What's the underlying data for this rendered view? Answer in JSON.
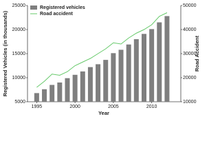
{
  "chart_data": {
    "type": "bar",
    "x_label": "Year",
    "y_label": "Registered Vehicles (in thousands)",
    "y2_label": "Road Accident",
    "x": [
      1995,
      1996,
      1997,
      1998,
      1999,
      2000,
      2001,
      2002,
      2003,
      2004,
      2005,
      2006,
      2007,
      2008,
      2009,
      2010,
      2011,
      2012
    ],
    "xlim": [
      1993.8,
      2013.8
    ],
    "xticks": [
      1995,
      2000,
      2005,
      2010
    ],
    "ylim": [
      5000,
      25000
    ],
    "yticks": [
      5000,
      10000,
      15000,
      20000,
      25000
    ],
    "y2lim": [
      10000,
      50000
    ],
    "y2ticks": [
      10000,
      20000,
      30000,
      40000,
      50000
    ],
    "legend": "top-left",
    "series": [
      {
        "name": "Registered vehicles",
        "type": "bar",
        "color": "#7f7f7f",
        "values": [
          6800,
          7600,
          8500,
          9000,
          9900,
          10600,
          11300,
          12200,
          12800,
          13700,
          15100,
          15800,
          16900,
          18000,
          19100,
          20100,
          21500,
          22800
        ]
      },
      {
        "name": "Road accident",
        "type": "line",
        "axis": "y2",
        "color": "#66c96a",
        "values": [
          16000,
          18500,
          21500,
          21000,
          22500,
          25000,
          26500,
          28000,
          30000,
          32000,
          34500,
          34000,
          36500,
          38500,
          40000,
          42000,
          45500,
          47000
        ]
      }
    ]
  }
}
